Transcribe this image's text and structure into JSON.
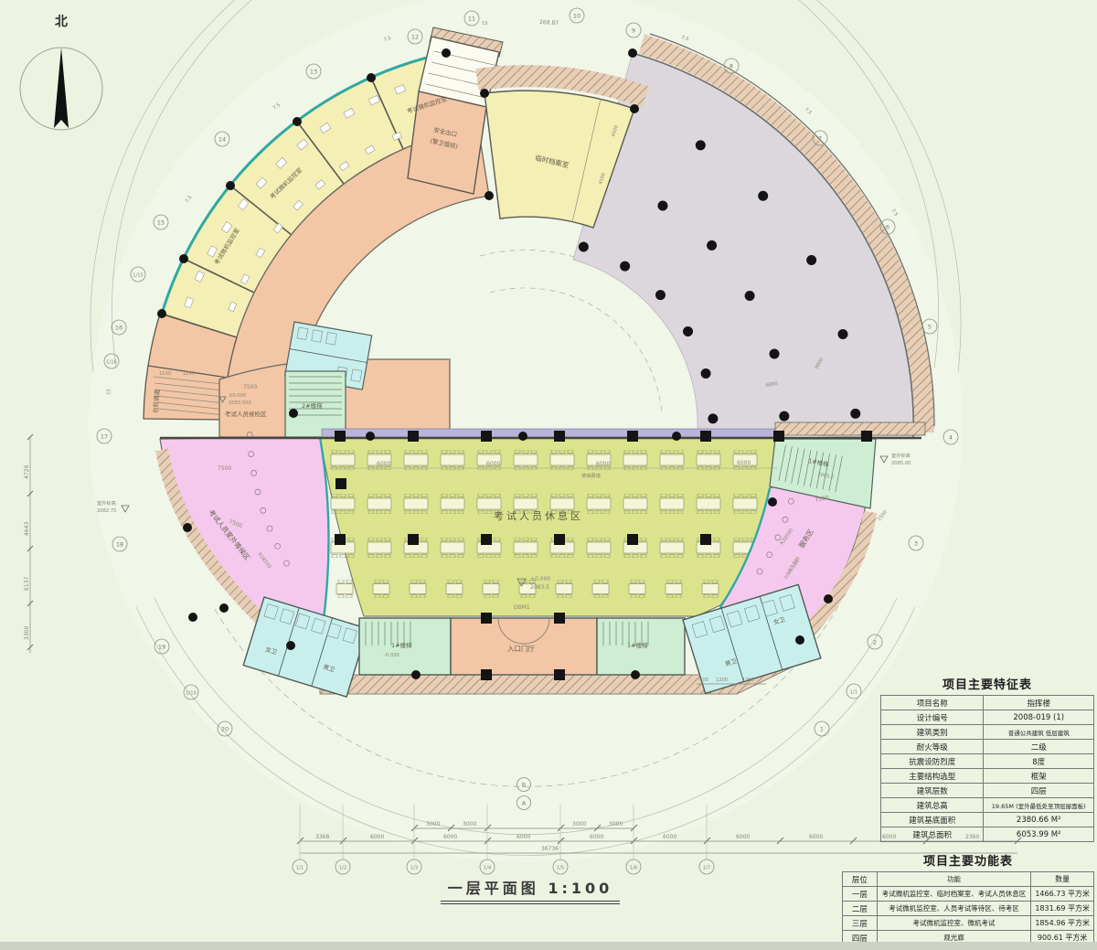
{
  "north_label": "北",
  "titleblock": {
    "title": "一层平面图",
    "scale": "1:100"
  },
  "plan": {
    "rooms": {
      "hall": "考试人员休息区",
      "entry": "入口门厅",
      "archive": "临时档案室",
      "guard1": "安全出口",
      "guard2": "(警卫值班)",
      "monitor": "考试微机监控室",
      "steps": "台阶通道",
      "checkin": "考试人员候检区",
      "wait_left": "考试人员室外等候区",
      "service": "服务区",
      "stair1": "1#楼梯",
      "stair2": "2#楼梯",
      "wc_m": "男卫",
      "wc_f": "女卫",
      "glass": "玻璃幕墙"
    },
    "elev": {
      "zero": "±0.000",
      "h1": "2083.5",
      "h2": "2083.500",
      "h3": "2085.5",
      "neg": "-0.020",
      "out_label": "室外标高",
      "out_r": "2085.00",
      "out_l": "2082.75",
      "door": "DBM1"
    },
    "dims": {
      "d6000": "6000",
      "d7500": "7500",
      "d3000": "3000",
      "d1500": "1500",
      "d3368": "3368",
      "d2360": "2360",
      "d400": "400",
      "d1200": "1200",
      "d1768": "1768",
      "d4500": "4500",
      "d9000": "9000",
      "total": "36736",
      "arc": "268.87",
      "a75": "7.5",
      "a15": "15",
      "radius": "R28500",
      "left": [
        "4729",
        "4643",
        "6137",
        "3300"
      ]
    },
    "grid": {
      "bubbles": [
        "1",
        "2",
        "3",
        "4",
        "5",
        "6",
        "7",
        "8",
        "9",
        "10",
        "11",
        "12",
        "13",
        "14",
        "15",
        "16",
        "17",
        "18",
        "19",
        "20",
        "1/15",
        "1/16",
        "1/19",
        "1/1"
      ],
      "bottom": [
        "1/1",
        "1/2",
        "1/3",
        "1/4",
        "1/5",
        "1/6",
        "1/7"
      ],
      "extra": [
        "B",
        "A"
      ]
    }
  },
  "features_table": {
    "title": "项目主要特征表",
    "rows": [
      {
        "label": "项目名称",
        "value": "指挥楼"
      },
      {
        "label": "设计编号",
        "value": "2008-019 (1)"
      },
      {
        "label": "建筑类别",
        "value": "普通公共建筑 低层建筑"
      },
      {
        "label": "耐火等级",
        "value": "二级"
      },
      {
        "label": "抗震设防烈度",
        "value": "8度"
      },
      {
        "label": "主要结构选型",
        "value": "框架"
      },
      {
        "label": "建筑层数",
        "value": "四层"
      },
      {
        "label": "建筑总高",
        "value": "19.65M (室外最低处至顶层屋面板)"
      },
      {
        "label": "建筑基底面积",
        "value": "2380.66 M²"
      },
      {
        "label": "建筑总面积",
        "value": "6053.99 M²"
      }
    ]
  },
  "functions_table": {
    "title": "项目主要功能表",
    "headers": [
      "层位",
      "功能",
      "数量"
    ],
    "rows": [
      [
        "一层",
        "考试微机监控室、临时档案室、考试人员休息区",
        "1466.73 平方米"
      ],
      [
        "二层",
        "考试微机监控室、人员考试等待区、待考区",
        "1831.69 平方米"
      ],
      [
        "三层",
        "考试微机监控室、微机考试",
        "1854.96 平方米"
      ],
      [
        "四层",
        "观光廊",
        "900.61 平方米"
      ]
    ]
  }
}
